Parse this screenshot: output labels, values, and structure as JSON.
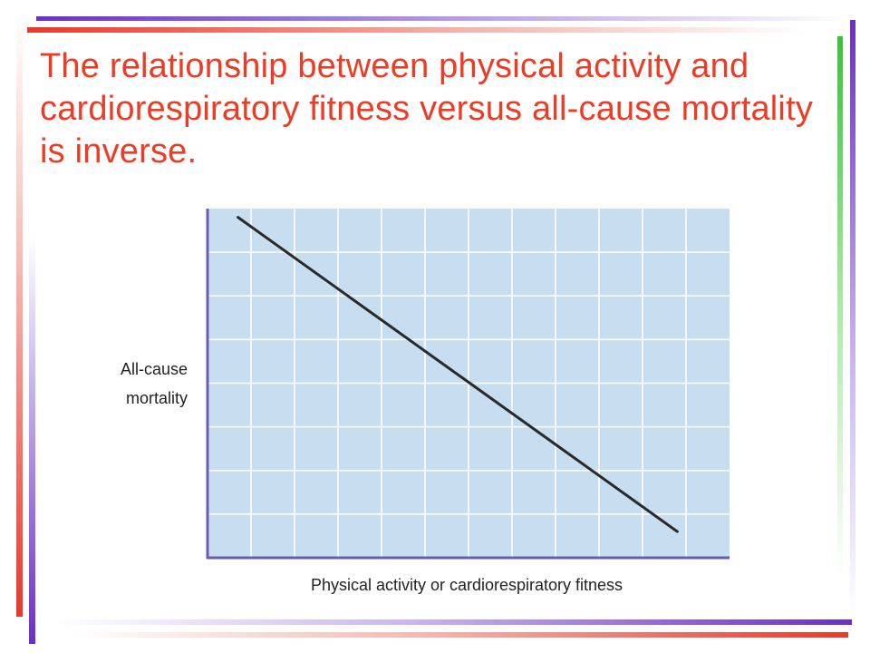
{
  "slide": {
    "title": "The relationship between physical activity and cardiorespiratory fitness versus all-cause mortality is inverse."
  },
  "colors": {
    "title": "#ee3b23",
    "plot_background": "#c7def0",
    "grid": "#ffffff",
    "axis": "#6a5bb5",
    "line": "#2a2a2a",
    "accent_purple": "#6a2fc4",
    "accent_red": "#e8392a",
    "accent_green": "#3cc13c"
  },
  "chart_data": {
    "type": "line",
    "title": "",
    "xlabel": "Physical activity or cardiorespiratory fitness",
    "ylabel_lines": [
      "All-cause",
      "mortality"
    ],
    "xlim": [
      0,
      12
    ],
    "ylim": [
      0,
      8
    ],
    "grid": true,
    "grid_divisions": {
      "x": 12,
      "y": 8
    },
    "ticks_labeled": false,
    "series": [
      {
        "x": [
          0.7,
          10.8
        ],
        "y": [
          7.8,
          0.6
        ]
      }
    ]
  }
}
